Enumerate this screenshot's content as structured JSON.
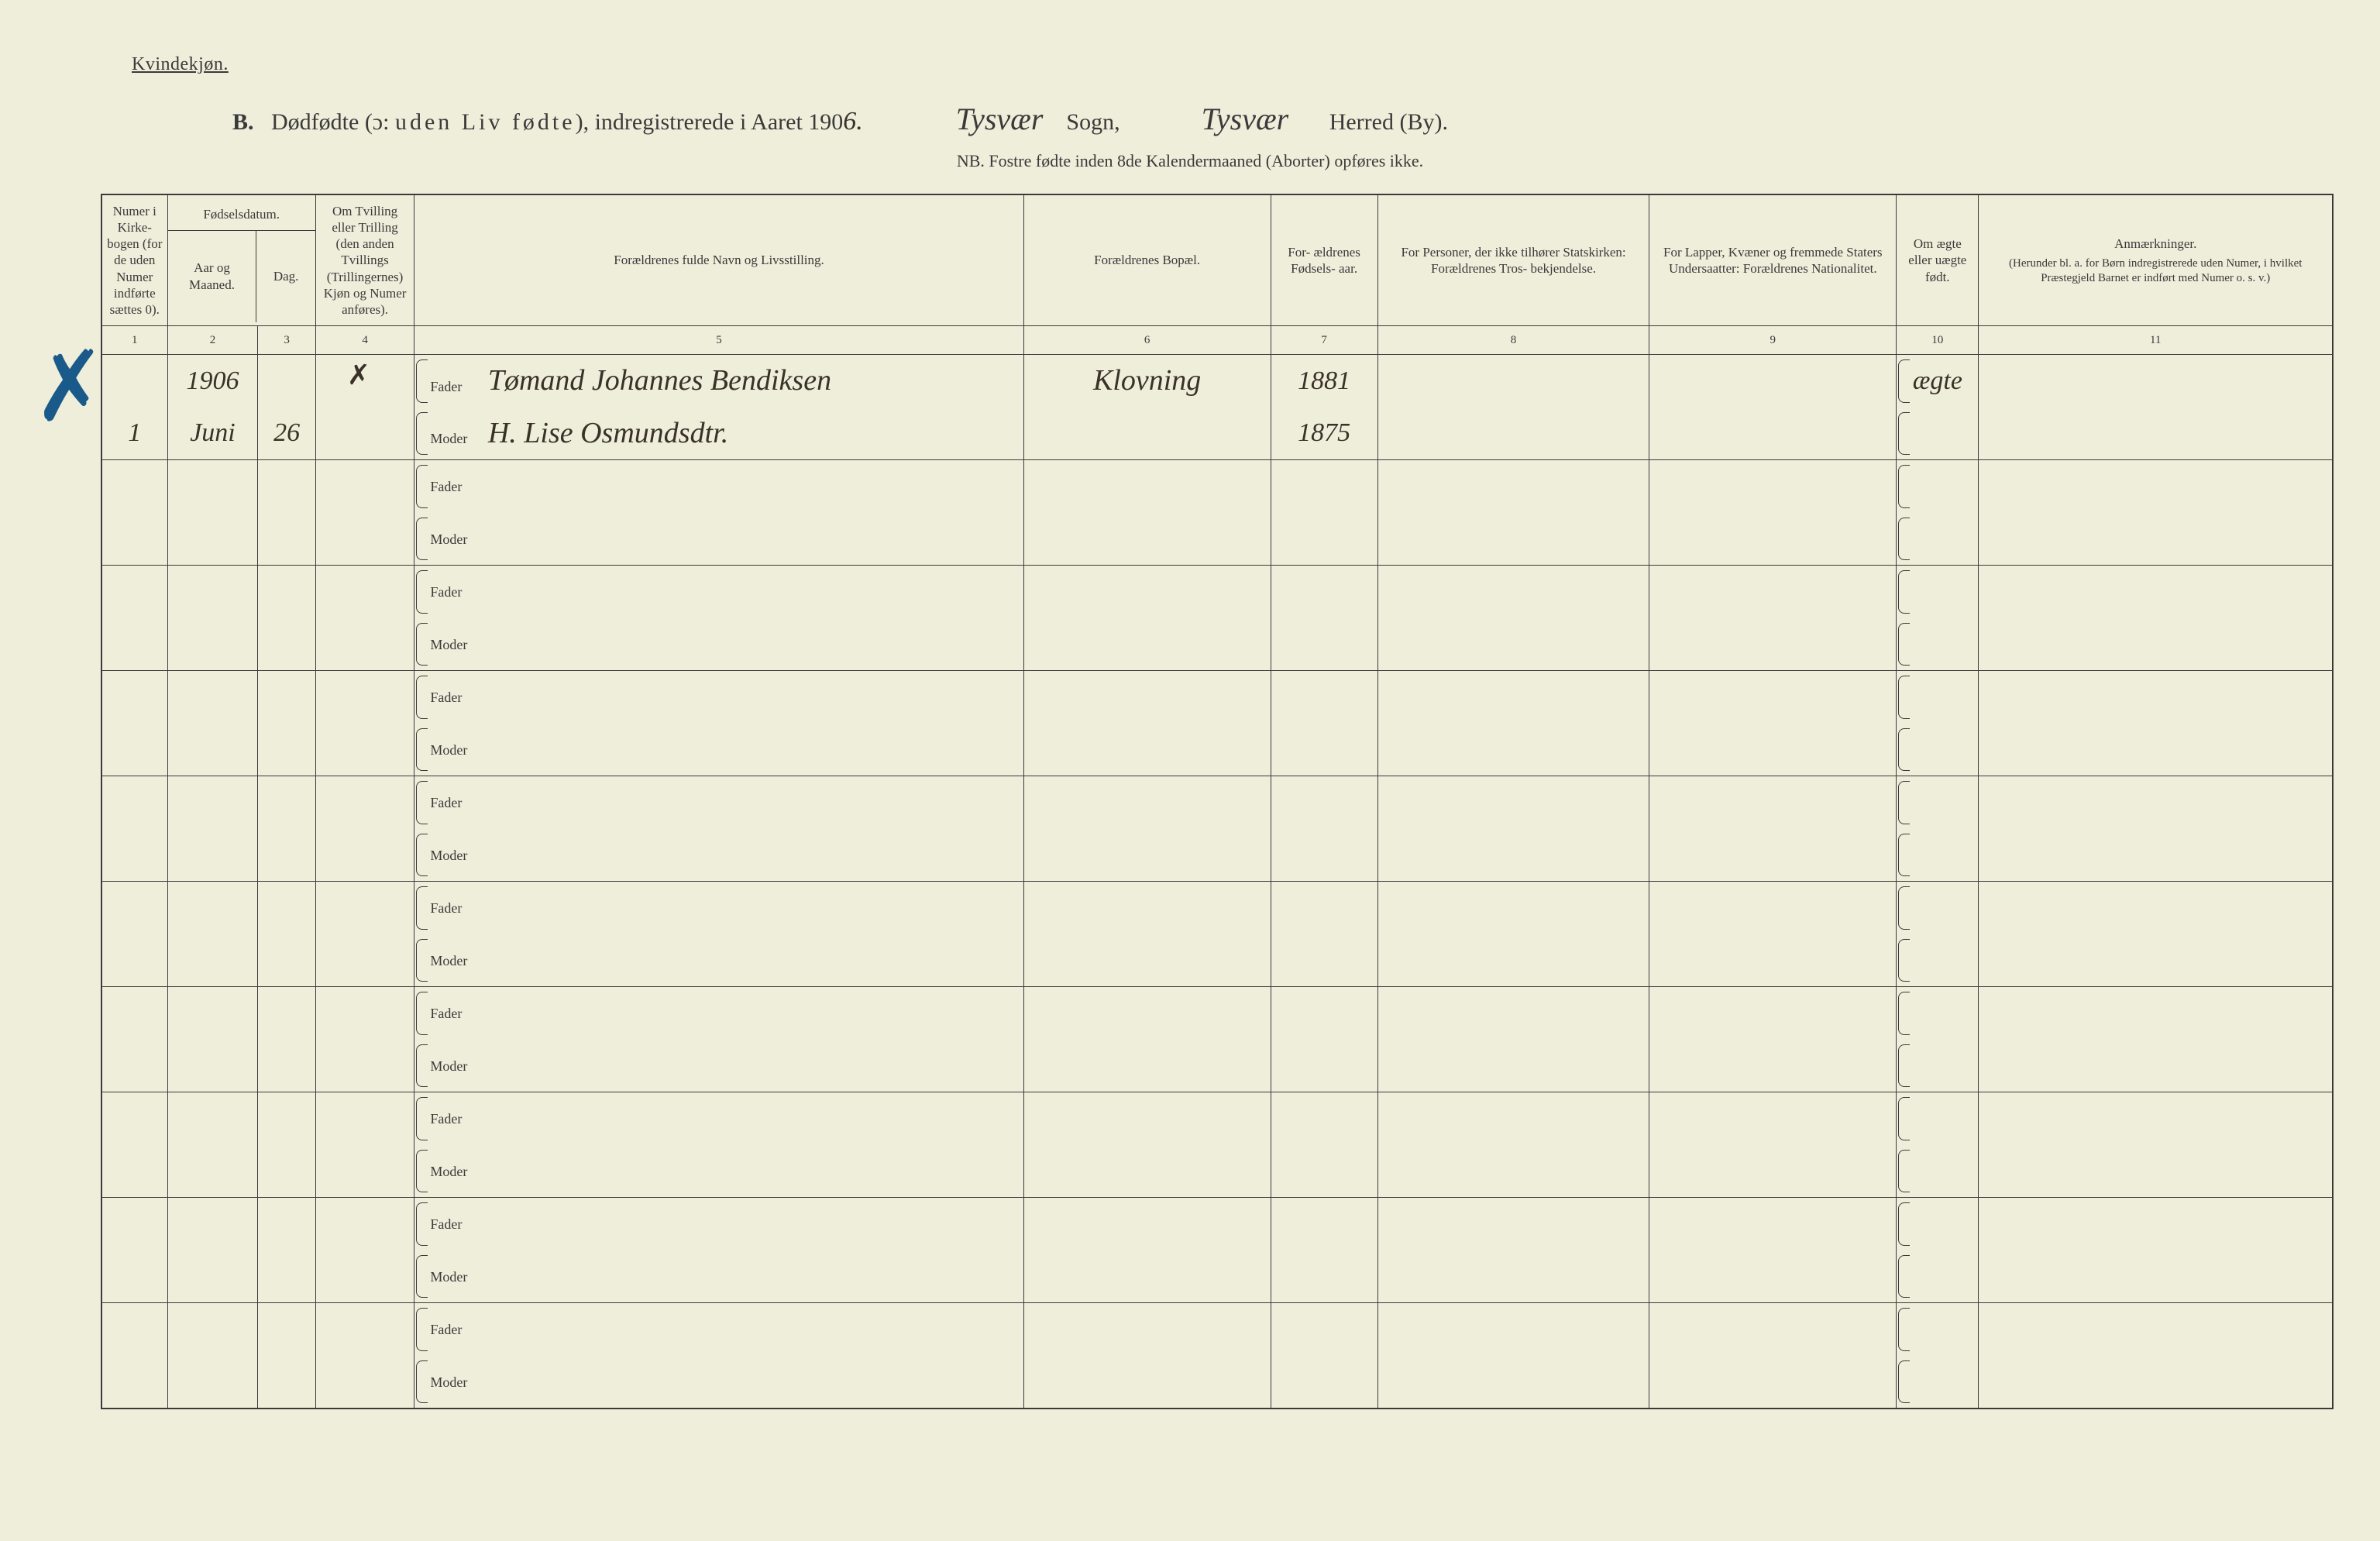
{
  "top_label": "Kvindekjøn.",
  "title": {
    "prefix": "B.",
    "main_a": "Dødfødte (ɔ:",
    "spaced": "uden Liv fødte",
    "main_b": "), indregistrerede i Aaret 190",
    "year_last": "6.",
    "sogn_hand": "Tysvær",
    "sogn_lbl": "Sogn,",
    "herred_hand": "Tysvær",
    "herred_lbl": "Herred (By)."
  },
  "subtitle": "NB.  Fostre fødte inden 8de Kalendermaaned (Aborter) opføres ikke.",
  "headers": {
    "c1": "Numer i Kirke- bogen (for de uden Numer indførte sættes 0).",
    "c2top": "Fødselsdatum.",
    "c2a": "Aar og Maaned.",
    "c2b": "Dag.",
    "c4": "Om Tvilling eller Trilling (den anden Tvillings (Trillingernes) Kjøn og Numer anføres).",
    "c5": "Forældrenes fulde Navn og Livsstilling.",
    "c6": "Forældrenes Bopæl.",
    "c7": "For- ældrenes Fødsels- aar.",
    "c8": "For Personer, der ikke tilhører Statskirken: Forældrenes Tros- bekjendelse.",
    "c9": "For Lapper, Kvæner og fremmede Staters Undersaatter: Forældrenes Nationalitet.",
    "c10": "Om ægte eller uægte født.",
    "c11a": "Anmærkninger.",
    "c11b": "(Herunder bl. a. for Børn indregistrerede uden Numer, i hvilket Præstegjeld Barnet er indført med Numer o. s. v.)"
  },
  "colnums": [
    "1",
    "2",
    "3",
    "4",
    "5",
    "6",
    "7",
    "8",
    "9",
    "10",
    "11"
  ],
  "fader": "Fader",
  "moder": "Moder",
  "entry": {
    "year": "1906",
    "num": "1",
    "month": "Juni",
    "day": "26",
    "fader_name": "Tømand Johannes Bendiksen",
    "moder_name": "H. Lise Osmundsdtr.",
    "bopael": "Klovning",
    "fader_year": "1881",
    "moder_year": "1875",
    "aegte": "ægte"
  },
  "blank_rows": 9
}
